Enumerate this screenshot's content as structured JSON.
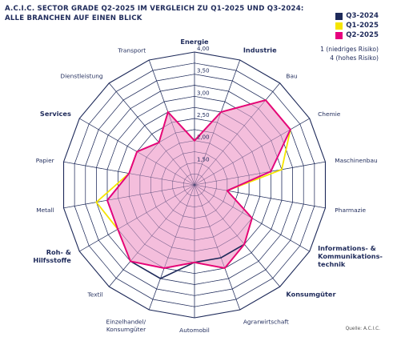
{
  "title_lines": [
    "A.C.I.C. SECTOR GRADE Q2-2025 IM VERGLEICH ZU Q1-2025 UND Q3-2024:",
    "ALLE BRANCHEN AUF EINEN BLICK"
  ],
  "scale_note": [
    "1 (niedriges Risiko)",
    "4 (hohes Risiko)"
  ],
  "source": "Quelle: A.C.I.C.",
  "colors": {
    "grid": "#1e2a5a",
    "q3_2024": "#1e2a5a",
    "q1_2025": "#f5e400",
    "q2_2025": "#e6007e",
    "fill": "#f2b3d6"
  },
  "chart_data": {
    "type": "radar",
    "rlim": [
      1,
      4
    ],
    "ticks": [
      "1,50",
      "2,00",
      "2,50",
      "3,00",
      "3,50",
      "4,00"
    ],
    "tick_values": [
      1.5,
      2.0,
      2.5,
      3.0,
      3.5,
      4.0
    ],
    "categories": [
      {
        "label": [
          "Energie"
        ],
        "bold": true
      },
      {
        "label": [
          "Industrie"
        ],
        "bold": true
      },
      {
        "label": [
          "Bau"
        ],
        "bold": false
      },
      {
        "label": [
          "Chemie"
        ],
        "bold": false
      },
      {
        "label": [
          "Maschinenbau"
        ],
        "bold": false
      },
      {
        "label": [
          "Pharmazie"
        ],
        "bold": false
      },
      {
        "label": [
          "Informations- &",
          "Kommunikations-",
          "technik"
        ],
        "bold": true
      },
      {
        "label": [
          "Konsumgüter"
        ],
        "bold": true
      },
      {
        "label": [
          "Agrarwirtschaft"
        ],
        "bold": false
      },
      {
        "label": [
          "Automobil"
        ],
        "bold": false
      },
      {
        "label": [
          "Einzelhandel/",
          "Konsumgüter"
        ],
        "bold": false
      },
      {
        "label": [
          "Textil"
        ],
        "bold": false
      },
      {
        "label": [
          "Roh- &",
          "Hilfsstoffe"
        ],
        "bold": true
      },
      {
        "label": [
          "Metall"
        ],
        "bold": false
      },
      {
        "label": [
          "Papier"
        ],
        "bold": false
      },
      {
        "label": [
          "Services"
        ],
        "bold": true
      },
      {
        "label": [
          "Dienstleistung"
        ],
        "bold": false
      },
      {
        "label": [
          "Transport"
        ],
        "bold": false
      }
    ],
    "series": [
      {
        "name": "Q3-2024",
        "color_key": "q3_2024",
        "values": [
          2.0,
          2.75,
          3.5,
          3.5,
          2.75,
          1.75,
          2.5,
          2.75,
          2.75,
          2.75,
          3.25,
          3.25,
          3.0,
          3.0,
          2.5,
          2.5,
          2.25,
          2.75
        ]
      },
      {
        "name": "Q1-2025",
        "color_key": "q1_2025",
        "values": [
          2.0,
          2.75,
          3.5,
          3.5,
          3.0,
          1.75,
          2.5,
          2.75,
          3.0,
          2.75,
          3.0,
          3.25,
          3.0,
          3.25,
          2.5,
          2.5,
          2.25,
          2.75
        ]
      },
      {
        "name": "Q2-2025",
        "color_key": "q2_2025",
        "values": [
          2.0,
          2.75,
          3.5,
          3.5,
          2.75,
          1.75,
          2.5,
          2.75,
          3.0,
          2.75,
          3.0,
          3.25,
          3.0,
          3.0,
          2.5,
          2.5,
          2.25,
          2.75
        ]
      }
    ]
  }
}
